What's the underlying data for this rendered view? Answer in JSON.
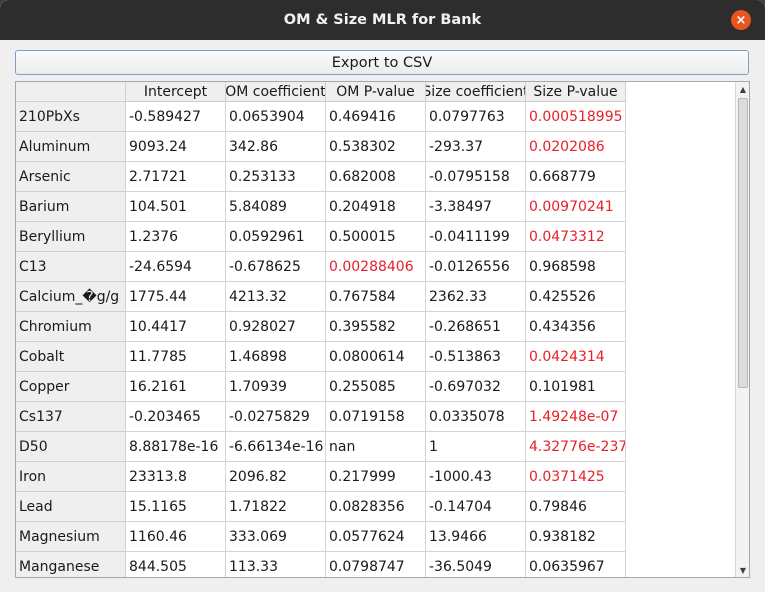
{
  "window": {
    "title": "OM & Size MLR for Bank",
    "close_glyph": "×"
  },
  "toolbar": {
    "export_label": "Export to CSV"
  },
  "table": {
    "columns": [
      "Intercept",
      "OM coefficient",
      "OM P-value",
      "Size coefficient",
      "Size P-value"
    ],
    "rows": [
      {
        "name": "210PbXs",
        "values": [
          "-0.589427",
          "0.0653904",
          "0.469416",
          "0.0797763",
          "0.000518995"
        ],
        "significant": [
          false,
          false,
          false,
          false,
          true
        ]
      },
      {
        "name": "Aluminum",
        "values": [
          "9093.24",
          "342.86",
          "0.538302",
          "-293.37",
          "0.0202086"
        ],
        "significant": [
          false,
          false,
          false,
          false,
          true
        ]
      },
      {
        "name": "Arsenic",
        "values": [
          "2.71721",
          "0.253133",
          "0.682008",
          "-0.0795158",
          "0.668779"
        ],
        "significant": [
          false,
          false,
          false,
          false,
          false
        ]
      },
      {
        "name": "Barium",
        "values": [
          "104.501",
          "5.84089",
          "0.204918",
          "-3.38497",
          "0.00970241"
        ],
        "significant": [
          false,
          false,
          false,
          false,
          true
        ]
      },
      {
        "name": "Beryllium",
        "values": [
          "1.2376",
          "0.0592961",
          "0.500015",
          "-0.0411199",
          "0.0473312"
        ],
        "significant": [
          false,
          false,
          false,
          false,
          true
        ]
      },
      {
        "name": "C13",
        "values": [
          "-24.6594",
          "-0.678625",
          "0.00288406",
          "-0.0126556",
          "0.968598"
        ],
        "significant": [
          false,
          false,
          true,
          false,
          false
        ]
      },
      {
        "name": "Calcium_�g/g",
        "values": [
          "1775.44",
          "4213.32",
          "0.767584",
          "2362.33",
          "0.425526"
        ],
        "significant": [
          false,
          false,
          false,
          false,
          false
        ]
      },
      {
        "name": "Chromium",
        "values": [
          "10.4417",
          "0.928027",
          "0.395582",
          "-0.268651",
          "0.434356"
        ],
        "significant": [
          false,
          false,
          false,
          false,
          false
        ]
      },
      {
        "name": "Cobalt",
        "values": [
          "11.7785",
          "1.46898",
          "0.0800614",
          "-0.513863",
          "0.0424314"
        ],
        "significant": [
          false,
          false,
          false,
          false,
          true
        ]
      },
      {
        "name": "Copper",
        "values": [
          "16.2161",
          "1.70939",
          "0.255085",
          "-0.697032",
          "0.101981"
        ],
        "significant": [
          false,
          false,
          false,
          false,
          false
        ]
      },
      {
        "name": "Cs137",
        "values": [
          "-0.203465",
          "-0.0275829",
          "0.0719158",
          "0.0335078",
          "1.49248e-07"
        ],
        "significant": [
          false,
          false,
          false,
          false,
          true
        ]
      },
      {
        "name": "D50",
        "values": [
          "8.88178e-16",
          "-6.66134e-16",
          "nan",
          "1",
          "4.32776e-237"
        ],
        "significant": [
          false,
          false,
          false,
          false,
          true
        ]
      },
      {
        "name": "Iron",
        "values": [
          "23313.8",
          "2096.82",
          "0.217999",
          "-1000.43",
          "0.0371425"
        ],
        "significant": [
          false,
          false,
          false,
          false,
          true
        ]
      },
      {
        "name": "Lead",
        "values": [
          "15.1165",
          "1.71822",
          "0.0828356",
          "-0.14704",
          "0.79846"
        ],
        "significant": [
          false,
          false,
          false,
          false,
          false
        ]
      },
      {
        "name": "Magnesium",
        "values": [
          "1160.46",
          "333.069",
          "0.0577624",
          "13.9466",
          "0.938182"
        ],
        "significant": [
          false,
          false,
          false,
          false,
          false
        ]
      },
      {
        "name": "Manganese",
        "values": [
          "844.505",
          "113.33",
          "0.0798747",
          "-36.5049",
          "0.0635967"
        ],
        "significant": [
          false,
          false,
          false,
          false,
          false
        ]
      }
    ]
  },
  "colors": {
    "significant_text": "#e8202a",
    "close_button": "#e95420"
  },
  "scrollbar": {
    "up_glyph": "▲",
    "down_glyph": "▼"
  }
}
